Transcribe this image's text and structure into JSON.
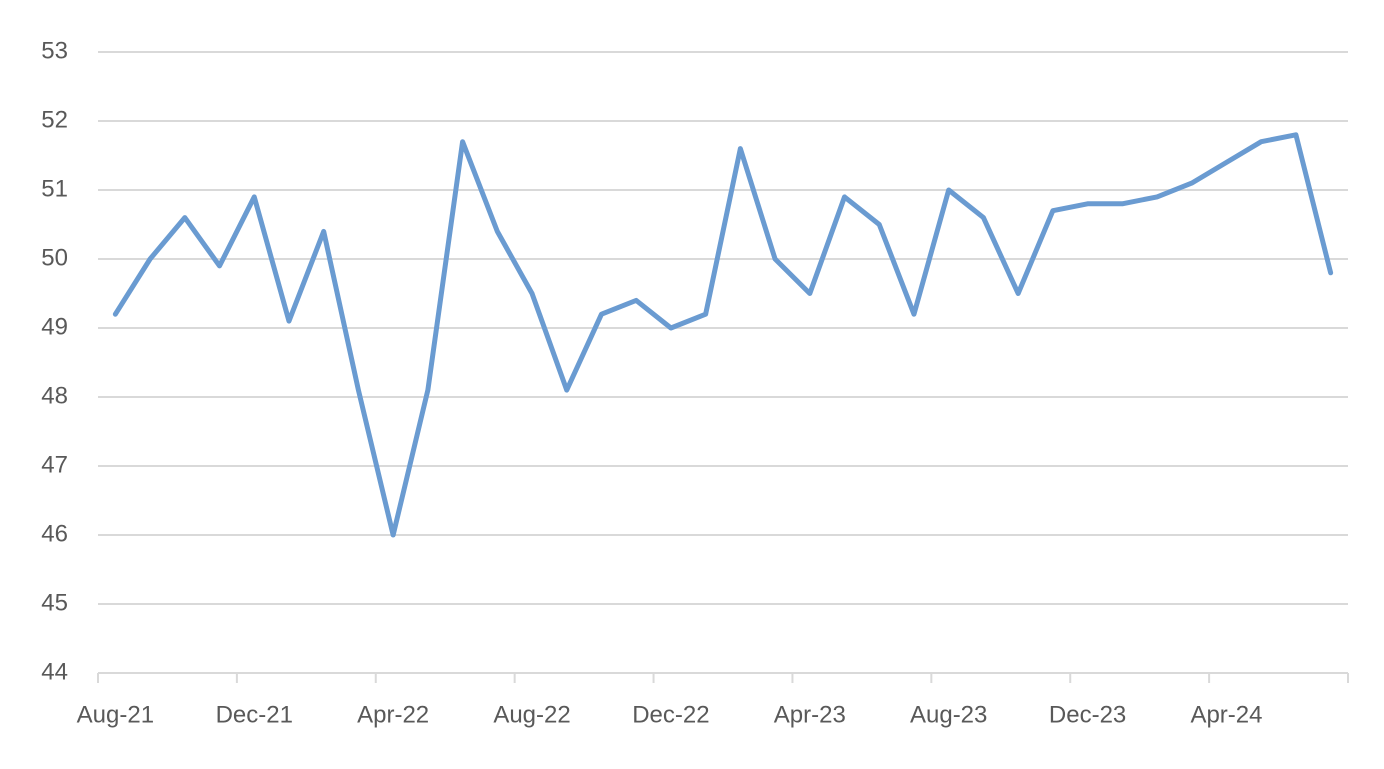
{
  "chart_data": {
    "type": "line",
    "categories": [
      "Aug-21",
      null,
      null,
      null,
      "Dec-21",
      null,
      null,
      null,
      "Apr-22",
      null,
      null,
      null,
      "Aug-22",
      null,
      null,
      null,
      "Dec-22",
      null,
      null,
      null,
      "Apr-23",
      null,
      null,
      null,
      "Aug-23",
      null,
      null,
      null,
      "Dec-23",
      null,
      null,
      null,
      "Apr-24",
      null,
      null,
      null
    ],
    "series": [
      {
        "color": "#6a9bd1",
        "values": [
          49.2,
          50.0,
          50.6,
          49.9,
          50.9,
          49.1,
          50.4,
          48.1,
          46.0,
          48.1,
          51.7,
          50.4,
          49.5,
          48.1,
          49.2,
          49.4,
          49.0,
          49.2,
          51.6,
          50.0,
          49.5,
          50.9,
          50.5,
          49.2,
          51.0,
          50.6,
          49.5,
          50.7,
          50.8,
          50.8,
          50.9,
          51.1,
          51.4,
          51.7,
          51.8,
          49.8
        ]
      }
    ],
    "ylim": [
      44,
      53
    ],
    "yticks": [
      44,
      45,
      46,
      47,
      48,
      49,
      50,
      51,
      52,
      53
    ],
    "grid": true
  }
}
